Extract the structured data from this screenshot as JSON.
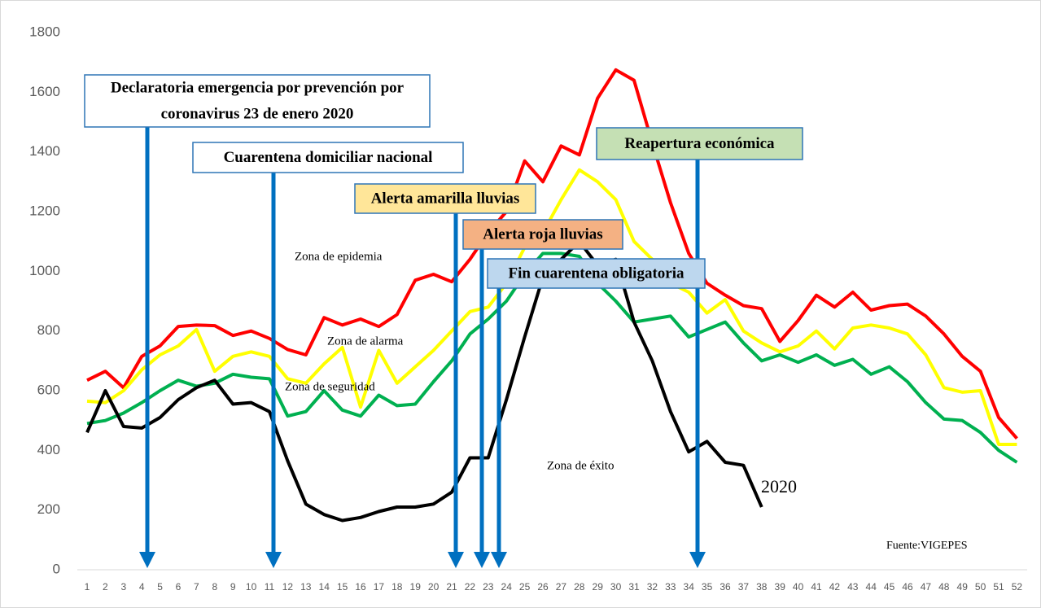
{
  "chart_data": {
    "type": "line",
    "categories": [
      1,
      2,
      3,
      4,
      5,
      6,
      7,
      8,
      9,
      10,
      11,
      12,
      13,
      14,
      15,
      16,
      17,
      18,
      19,
      20,
      21,
      22,
      23,
      24,
      25,
      26,
      27,
      28,
      29,
      30,
      31,
      32,
      33,
      34,
      35,
      36,
      37,
      38,
      39,
      40,
      41,
      42,
      43,
      44,
      45,
      46,
      47,
      48,
      49,
      50,
      51,
      52
    ],
    "ylim": [
      0,
      1800
    ],
    "yticks": [
      0,
      200,
      400,
      600,
      800,
      1000,
      1200,
      1400,
      1600,
      1800
    ],
    "grid": false,
    "series": [
      {
        "color": "#ff0000",
        "values": [
          635,
          665,
          610,
          715,
          750,
          815,
          820,
          818,
          785,
          800,
          775,
          738,
          720,
          845,
          820,
          840,
          815,
          855,
          970,
          990,
          965,
          1040,
          1130,
          1200,
          1370,
          1300,
          1420,
          1390,
          1580,
          1675,
          1640,
          1430,
          1230,
          1060,
          960,
          920,
          885,
          875,
          765,
          835,
          920,
          880,
          930,
          870,
          885,
          890,
          850,
          790,
          715,
          665,
          510,
          440
        ]
      },
      {
        "color": "#ffff00",
        "values": [
          565,
          560,
          600,
          670,
          720,
          750,
          805,
          665,
          715,
          730,
          715,
          640,
          625,
          690,
          745,
          545,
          735,
          625,
          680,
          735,
          800,
          865,
          880,
          960,
          1080,
          1130,
          1240,
          1340,
          1300,
          1240,
          1100,
          1040,
          960,
          930,
          860,
          905,
          800,
          760,
          730,
          750,
          800,
          740,
          810,
          820,
          810,
          790,
          720,
          610,
          595,
          600,
          420,
          420
        ]
      },
      {
        "color": "#00b050",
        "values": [
          490,
          500,
          525,
          560,
          600,
          635,
          615,
          625,
          655,
          645,
          640,
          515,
          530,
          600,
          535,
          515,
          585,
          550,
          555,
          630,
          700,
          790,
          840,
          900,
          990,
          1060,
          1060,
          1050,
          960,
          900,
          830,
          840,
          850,
          780,
          805,
          830,
          760,
          700,
          720,
          695,
          720,
          685,
          705,
          655,
          680,
          630,
          560,
          505,
          500,
          460,
          400,
          360
        ]
      },
      {
        "name": "2020",
        "color": "#000000",
        "values": [
          460,
          600,
          480,
          475,
          510,
          570,
          610,
          635,
          555,
          560,
          530,
          365,
          220,
          185,
          165,
          175,
          195,
          210,
          210,
          220,
          260,
          375,
          375,
          570,
          780,
          980,
          1040,
          1100,
          1020,
          1040,
          830,
          700,
          530,
          395,
          430,
          360,
          350,
          210,
          null,
          null,
          null,
          null,
          null,
          null,
          null,
          null,
          null,
          null,
          null,
          null,
          null,
          null
        ]
      }
    ],
    "zones": [
      "Zona de epidemia",
      "Zona de alarma",
      "Zona de seguridad",
      "Zona de éxito"
    ],
    "events": [
      {
        "text": [
          "Declaratoria emergencia por prevención por",
          "coronavirus 23 de enero 2020"
        ],
        "color": "#ffffff"
      },
      {
        "text": [
          "Cuarentena domiciliar nacional"
        ],
        "color": "#ffffff"
      },
      {
        "text": [
          "Alerta amarilla lluvias"
        ],
        "color": "#ffe699"
      },
      {
        "text": [
          "Alerta roja lluvias"
        ],
        "color": "#f4b183"
      },
      {
        "text": [
          "Fin cuarentena obligatoria"
        ],
        "color": "#bdd7ee"
      },
      {
        "text": [
          "Reapertura económica"
        ],
        "color": "#c5e0b4"
      }
    ],
    "source": "Fuente:VIGEPES"
  }
}
